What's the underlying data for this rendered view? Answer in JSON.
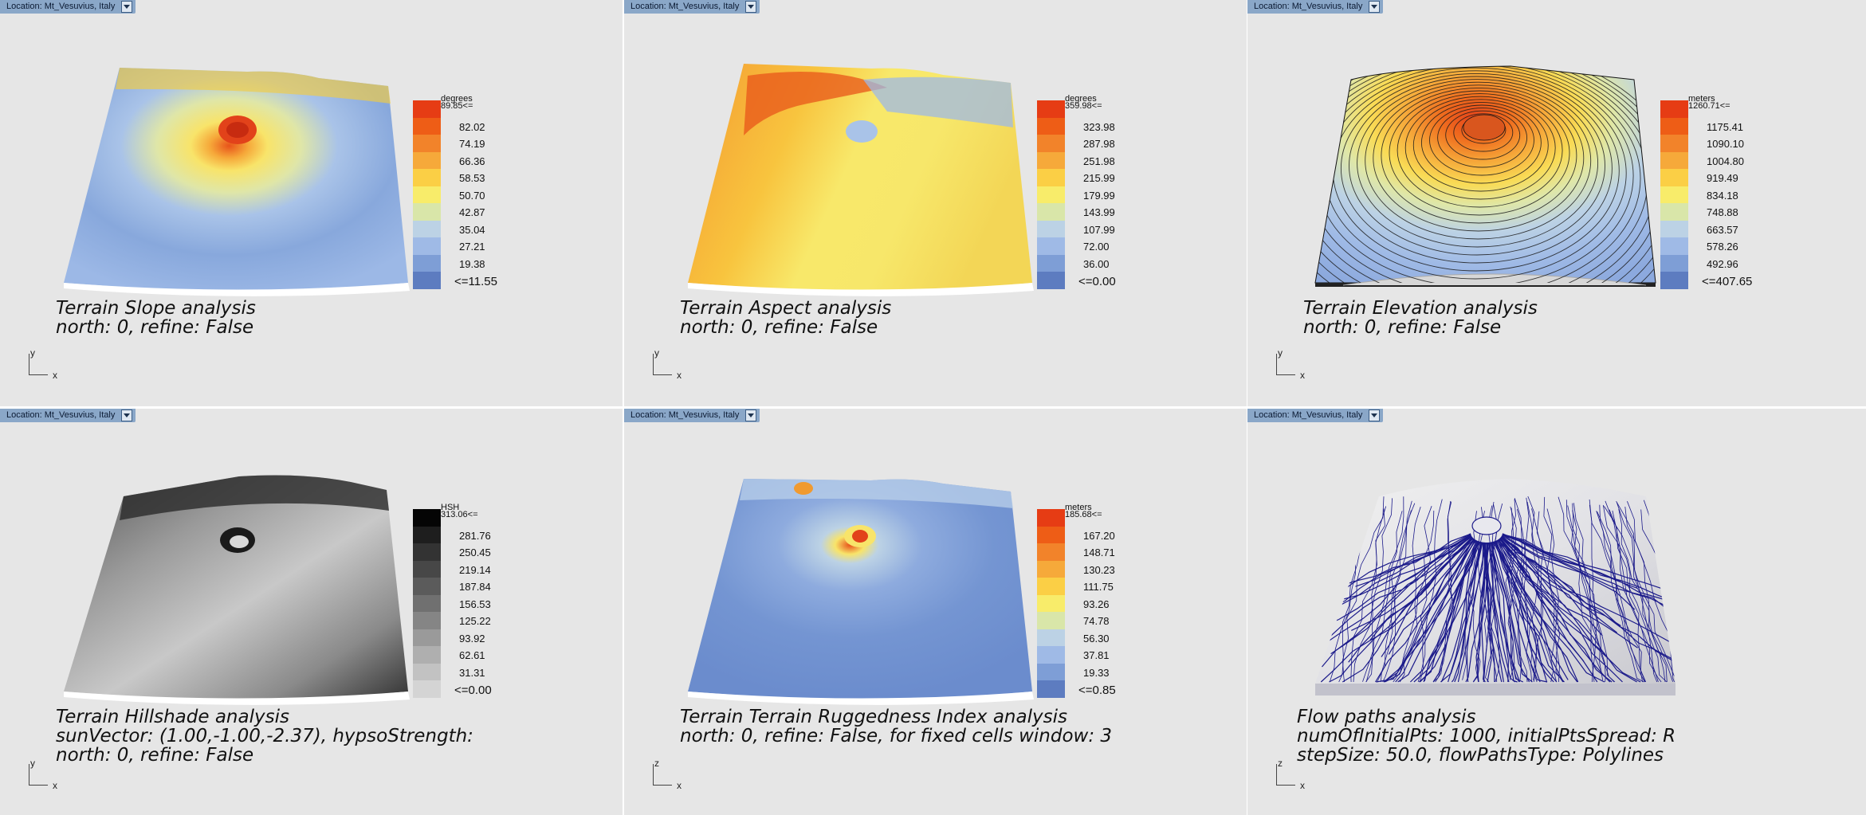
{
  "location_label": "Location: Mt_Vesuvius, Italy",
  "viewports": [
    {
      "id": "slope",
      "caption_line1": "Terrain Slope analysis",
      "caption_line2": "north: 0, refine: False",
      "caption_line3": "",
      "legend_unit": "degrees",
      "legend_ticks": [
        "89.85<=",
        "82.02",
        "74.19",
        "66.36",
        "58.53",
        "50.70",
        "42.87",
        "35.04",
        "27.21",
        "19.38",
        "<=11.55"
      ],
      "legend_colors": [
        "#e63c14",
        "#ee5d16",
        "#f2832a",
        "#f6a93a",
        "#fbcf45",
        "#f8ec6a",
        "#d9e6a9",
        "#bcd2e5",
        "#9fbae6",
        "#7e9ed6",
        "#5d7cc0"
      ],
      "axis_y": "y",
      "axis_x": "x"
    },
    {
      "id": "aspect",
      "caption_line1": "Terrain Aspect analysis",
      "caption_line2": "north: 0, refine: False",
      "caption_line3": "",
      "legend_unit": "degrees",
      "legend_ticks": [
        "359.98<=",
        "323.98",
        "287.98",
        "251.98",
        "215.99",
        "179.99",
        "143.99",
        "107.99",
        "72.00",
        "36.00",
        "<=0.00"
      ],
      "legend_colors": [
        "#e63c14",
        "#ee5d16",
        "#f2832a",
        "#f6a93a",
        "#fbcf45",
        "#f8ec6a",
        "#d9e6a9",
        "#bcd2e5",
        "#9fbae6",
        "#7e9ed6",
        "#5d7cc0"
      ],
      "axis_y": "y",
      "axis_x": "x"
    },
    {
      "id": "elevation",
      "caption_line1": "Terrain Elevation analysis",
      "caption_line2": "north: 0, refine: False",
      "caption_line3": "",
      "legend_unit": "meters",
      "legend_ticks": [
        "1260.71<=",
        "1175.41",
        "1090.10",
        "1004.80",
        "919.49",
        "834.18",
        "748.88",
        "663.57",
        "578.26",
        "492.96",
        "<=407.65"
      ],
      "legend_colors": [
        "#e63c14",
        "#ee5d16",
        "#f2832a",
        "#f6a93a",
        "#fbcf45",
        "#f8ec6a",
        "#d9e6a9",
        "#bcd2e5",
        "#9fbae6",
        "#7e9ed6",
        "#5d7cc0"
      ],
      "axis_y": "y",
      "axis_x": "x"
    },
    {
      "id": "hillshade",
      "caption_line1": "Terrain Hillshade analysis",
      "caption_line2": "sunVector: (1.00,-1.00,-2.37), hypsoStrength:",
      "caption_line3": "north: 0, refine: False",
      "legend_unit": "HSH",
      "legend_ticks": [
        "313.06<=",
        "281.76",
        "250.45",
        "219.14",
        "187.84",
        "156.53",
        "125.22",
        "93.92",
        "62.61",
        "31.31",
        "<=0.00"
      ],
      "legend_colors": [
        "#050505",
        "#1e1e1e",
        "#333333",
        "#474747",
        "#5b5b5b",
        "#707070",
        "#858585",
        "#9a9a9a",
        "#afafaf",
        "#c2c2c2",
        "#d4d4d4"
      ],
      "axis_y": "y",
      "axis_x": "x"
    },
    {
      "id": "tri",
      "caption_line1": "Terrain Terrain Ruggedness Index analysis",
      "caption_line2": "north: 0, refine: False, for fixed cells window: 3",
      "caption_line3": "",
      "legend_unit": "meters",
      "legend_ticks": [
        "185.68<=",
        "167.20",
        "148.71",
        "130.23",
        "111.75",
        "93.26",
        "74.78",
        "56.30",
        "37.81",
        "19.33",
        "<=0.85"
      ],
      "legend_colors": [
        "#e63c14",
        "#ee5d16",
        "#f2832a",
        "#f6a93a",
        "#fbcf45",
        "#f8ec6a",
        "#d9e6a9",
        "#bcd2e5",
        "#9fbae6",
        "#7e9ed6",
        "#5d7cc0"
      ],
      "axis_y": "z",
      "axis_x": "x"
    },
    {
      "id": "flow",
      "caption_line1": "Flow paths analysis",
      "caption_line2": "numOfInitialPts: 1000, initialPtsSpread: R",
      "caption_line3": "stepSize: 50.0, flowPathsType: Polylines",
      "legend_unit": "",
      "legend_ticks": [],
      "legend_colors": [],
      "axis_y": "z",
      "axis_x": "x"
    }
  ]
}
